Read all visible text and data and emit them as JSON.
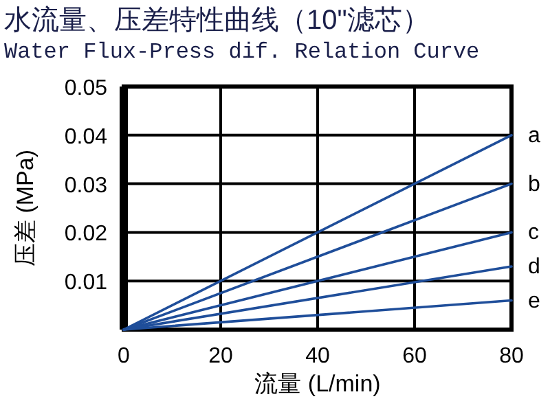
{
  "chart_data": {
    "type": "line",
    "title": "水流量、压差特性曲线（10\"滤芯）",
    "subtitle": "Water Flux-Press dif. Relation Curve",
    "xlabel": "流量 (L/min)",
    "ylabel": "压差 (MPa)",
    "x": [
      0,
      80
    ],
    "series": [
      {
        "name": "a",
        "color": "#1f4e9a",
        "values": [
          0,
          0.04
        ]
      },
      {
        "name": "b",
        "color": "#1f4e9a",
        "values": [
          0,
          0.03
        ]
      },
      {
        "name": "c",
        "color": "#1f4e9a",
        "values": [
          0,
          0.02
        ]
      },
      {
        "name": "d",
        "color": "#1f4e9a",
        "values": [
          0,
          0.013
        ]
      },
      {
        "name": "e",
        "color": "#1f4e9a",
        "values": [
          0,
          0.006
        ]
      }
    ],
    "xlim": [
      0,
      80
    ],
    "xticks": [
      0,
      20,
      40,
      60,
      80
    ],
    "ylim": [
      0,
      0.05
    ],
    "yticks": [
      0.01,
      0.02,
      0.03,
      0.04,
      0.05
    ],
    "grid": true,
    "marker": "none",
    "line_style": "solid"
  }
}
